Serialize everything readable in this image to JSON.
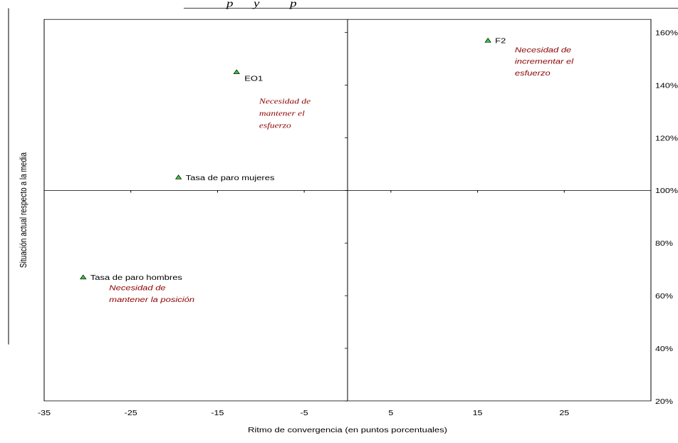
{
  "colors": {
    "annotation": "#8b0000",
    "marker_fill": "#33cc33",
    "marker_stroke": "#000000",
    "axis": "#000000"
  },
  "header": {
    "title_fragment": "p      y         p"
  },
  "chart_data": {
    "type": "scatter",
    "title": "",
    "xlabel": "Ritmo de convergencia (en puntos porcentuales)",
    "ylabel": "Situación actual respecto a la media",
    "xlim": [
      -35,
      35
    ],
    "ylim": [
      20,
      165
    ],
    "x_ticks": [
      -35,
      -25,
      -15,
      -5,
      5,
      15,
      25
    ],
    "y_ticks": [
      20,
      40,
      60,
      80,
      100,
      120,
      140,
      160
    ],
    "y_tick_format": "%",
    "x_crosses_y_at": 100,
    "y_axis_at_x": 0,
    "x_tick_labels_at_y": 20,
    "y_tick_labels": "right",
    "grid": false,
    "points": [
      {
        "label": "EO1",
        "x": -12.8,
        "y": 145,
        "marker": "triangle"
      },
      {
        "label": "Tasa de paro mujeres",
        "x": -19.5,
        "y": 105,
        "marker": "triangle"
      },
      {
        "label": "Tasa de paro hombres",
        "x": -30.5,
        "y": 67,
        "marker": "triangle"
      },
      {
        "label": "F2",
        "x": 16.2,
        "y": 157,
        "marker": "triangle"
      }
    ],
    "annotations": [
      {
        "lines": [
          "Necesidad de",
          "mantener el",
          "esfuerzo"
        ],
        "x": -10.2,
        "y": 133,
        "style": "serif"
      },
      {
        "lines": [
          "Necesidad de",
          "incrementar el",
          "esfuerzo"
        ],
        "x": 19.3,
        "y": 152.5,
        "style": "sans"
      },
      {
        "lines": [
          "Necesidad de",
          "mantener la posición"
        ],
        "x": -27.5,
        "y": 62,
        "style": "sans"
      }
    ]
  }
}
